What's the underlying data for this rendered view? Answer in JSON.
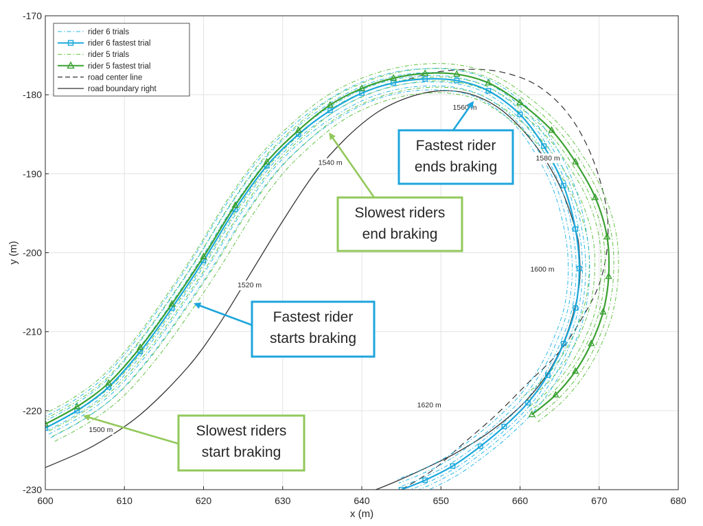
{
  "chart_data": {
    "type": "line",
    "xlabel": "x (m)",
    "ylabel": "y (m)",
    "xlim": [
      600,
      680
    ],
    "ylim": [
      -230,
      -170
    ],
    "xticks": [
      600,
      610,
      620,
      630,
      640,
      650,
      660,
      670,
      680
    ],
    "yticks": [
      -170,
      -180,
      -190,
      -200,
      -210,
      -220,
      -230
    ],
    "grid": true,
    "legend_position": "top-left",
    "colors": {
      "rider6": "#29b6e6",
      "rider6_fastest": "#1aa8dc",
      "rider5": "#5fc040",
      "rider5_fastest": "#39a030",
      "center": "#333333",
      "boundary": "#333333",
      "blue_box": "#1ea5dc",
      "green_box": "#92c85a"
    },
    "legend": [
      "rider 6 trials",
      "rider 6 fastest trial",
      "rider 5 trials",
      "rider 5 fastest trial",
      "road center line",
      "road boundary right"
    ],
    "series": [
      {
        "name": "road boundary right",
        "x": [
          600,
          606,
          612,
          618,
          622,
          626,
          630,
          634,
          638,
          642,
          646,
          650,
          654,
          658,
          662,
          665,
          667,
          667.5,
          667.5,
          666.5,
          665,
          663,
          660,
          656,
          652,
          648,
          644,
          641
        ],
        "y": [
          -227.2,
          -224.5,
          -220.5,
          -214.5,
          -209,
          -202.5,
          -196,
          -190,
          -185.5,
          -182.2,
          -180.3,
          -179.5,
          -180,
          -182.2,
          -186.5,
          -191.5,
          -197,
          -200,
          -204,
          -208.5,
          -212.5,
          -216,
          -219.5,
          -222.8,
          -225.3,
          -227.3,
          -229.1,
          -230.3
        ]
      },
      {
        "name": "road center line",
        "x": [
          645,
          649,
          653,
          657,
          661,
          665,
          668,
          670,
          671,
          671,
          670,
          668.5,
          666.5,
          664,
          661,
          657,
          653,
          649,
          646
        ],
        "y": [
          -230,
          -227.5,
          -224,
          -220.5,
          -216.5,
          -212.5,
          -208,
          -204,
          -199.5,
          -195,
          -190.5,
          -186.5,
          -183,
          -180.2,
          -178.2,
          -177,
          -176.8,
          -177.2,
          -178
        ]
      },
      {
        "name": "rider 6 fastest trial",
        "x": [
          600,
          604,
          608,
          612,
          616,
          620,
          624,
          628,
          632,
          636,
          640,
          644,
          648,
          652,
          656,
          660,
          663,
          665.5,
          667,
          667.5,
          667,
          665.5,
          663.5,
          661,
          658,
          655,
          651.5,
          648,
          645
        ],
        "y": [
          -222.2,
          -220,
          -217,
          -212.5,
          -207,
          -201,
          -194.5,
          -189,
          -185,
          -182,
          -179.8,
          -178.5,
          -178,
          -178.2,
          -179.5,
          -182.5,
          -186.5,
          -191.5,
          -197,
          -202,
          -207,
          -211.5,
          -215.5,
          -219,
          -222,
          -224.5,
          -227,
          -228.8,
          -230
        ]
      },
      {
        "name": "rider 5 fastest trial",
        "x": [
          600,
          604,
          608,
          612,
          616,
          620,
          624,
          628,
          632,
          636,
          640,
          644,
          648,
          652,
          656,
          660,
          664,
          667,
          669.5,
          671,
          671.2,
          670.5,
          669,
          667,
          664.5,
          661.5
        ],
        "y": [
          -221.7,
          -219.5,
          -216.5,
          -212,
          -206.5,
          -200.5,
          -194,
          -188.5,
          -184.5,
          -181.3,
          -179.2,
          -177.9,
          -177.3,
          -177.4,
          -178.5,
          -181,
          -184.5,
          -188.5,
          -193,
          -198,
          -203,
          -207.5,
          -211.5,
          -215,
          -218,
          -220.5
        ]
      }
    ],
    "trial_offsets": {
      "rider 6 trials": [
        -1.3,
        -0.8,
        -0.4,
        0.4,
        0.9,
        1.4
      ],
      "rider 5 trials": [
        -1.2,
        -0.6,
        0.5,
        1.0,
        1.8,
        2.5
      ]
    },
    "distance_markers": [
      {
        "label": "1500 m",
        "x": 605.5,
        "y": -222.7
      },
      {
        "label": "1520 m",
        "x": 624.3,
        "y": -204.4
      },
      {
        "label": "1540 m",
        "x": 634.5,
        "y": -188.9
      },
      {
        "label": "1560 m",
        "x": 651.5,
        "y": -181.9
      },
      {
        "label": "1580 m",
        "x": 662,
        "y": -188.3
      },
      {
        "label": "1600 m",
        "x": 661.3,
        "y": -202.4
      },
      {
        "label": "1620 m",
        "x": 647,
        "y": -219.6
      }
    ],
    "annotations": [
      {
        "lines": [
          "Fastest rider",
          "ends braking"
        ],
        "color": "blue",
        "target": [
          654,
          -181
        ]
      },
      {
        "lines": [
          "Slowest riders",
          "end braking"
        ],
        "color": "green",
        "target": [
          636,
          -185
        ]
      },
      {
        "lines": [
          "Fastest rider",
          "starts braking"
        ],
        "color": "blue",
        "target": [
          619,
          -206.5
        ]
      },
      {
        "lines": [
          "Slowest riders",
          "start braking"
        ],
        "color": "green",
        "target": [
          605,
          -220.7
        ]
      }
    ]
  }
}
